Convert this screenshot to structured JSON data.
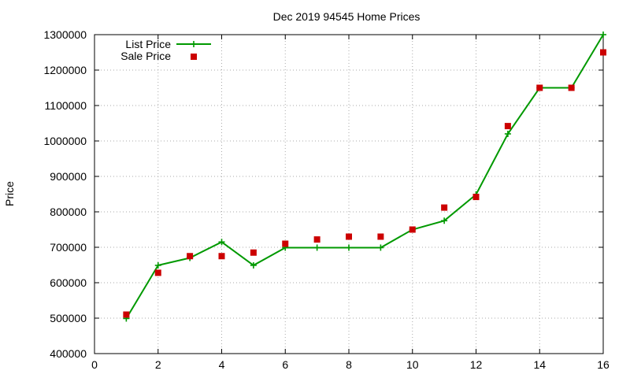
{
  "chart_data": {
    "type": "line",
    "title": "Dec 2019 94545 Home Prices",
    "xlabel": "",
    "ylabel": "Price",
    "xlim": [
      0,
      16
    ],
    "ylim": [
      400000,
      1300000
    ],
    "x_ticks": [
      0,
      2,
      4,
      6,
      8,
      10,
      12,
      14,
      16
    ],
    "y_ticks": [
      400000,
      500000,
      600000,
      700000,
      800000,
      900000,
      1000000,
      1100000,
      1200000,
      1300000
    ],
    "grid": true,
    "legend_position": "top-left",
    "series": [
      {
        "name": "List Price",
        "style": "line-with-plus-markers",
        "color": "#009900",
        "x": [
          1,
          2,
          3,
          4,
          5,
          6,
          7,
          8,
          9,
          10,
          11,
          12,
          13,
          14,
          15,
          16
        ],
        "values": [
          499000,
          649000,
          670000,
          715000,
          649000,
          699000,
          699000,
          699000,
          699000,
          750000,
          775000,
          849000,
          1020000,
          1150000,
          1150000,
          1300000
        ]
      },
      {
        "name": "Sale Price",
        "style": "square-markers",
        "color": "#cc0000",
        "x": [
          1,
          2,
          3,
          4,
          5,
          6,
          7,
          8,
          9,
          10,
          11,
          12,
          13,
          14,
          15,
          16
        ],
        "values": [
          510000,
          628000,
          675000,
          675000,
          685000,
          710000,
          722000,
          730000,
          730000,
          750000,
          812000,
          842000,
          1042000,
          1150000,
          1150000,
          1250000
        ]
      }
    ]
  }
}
